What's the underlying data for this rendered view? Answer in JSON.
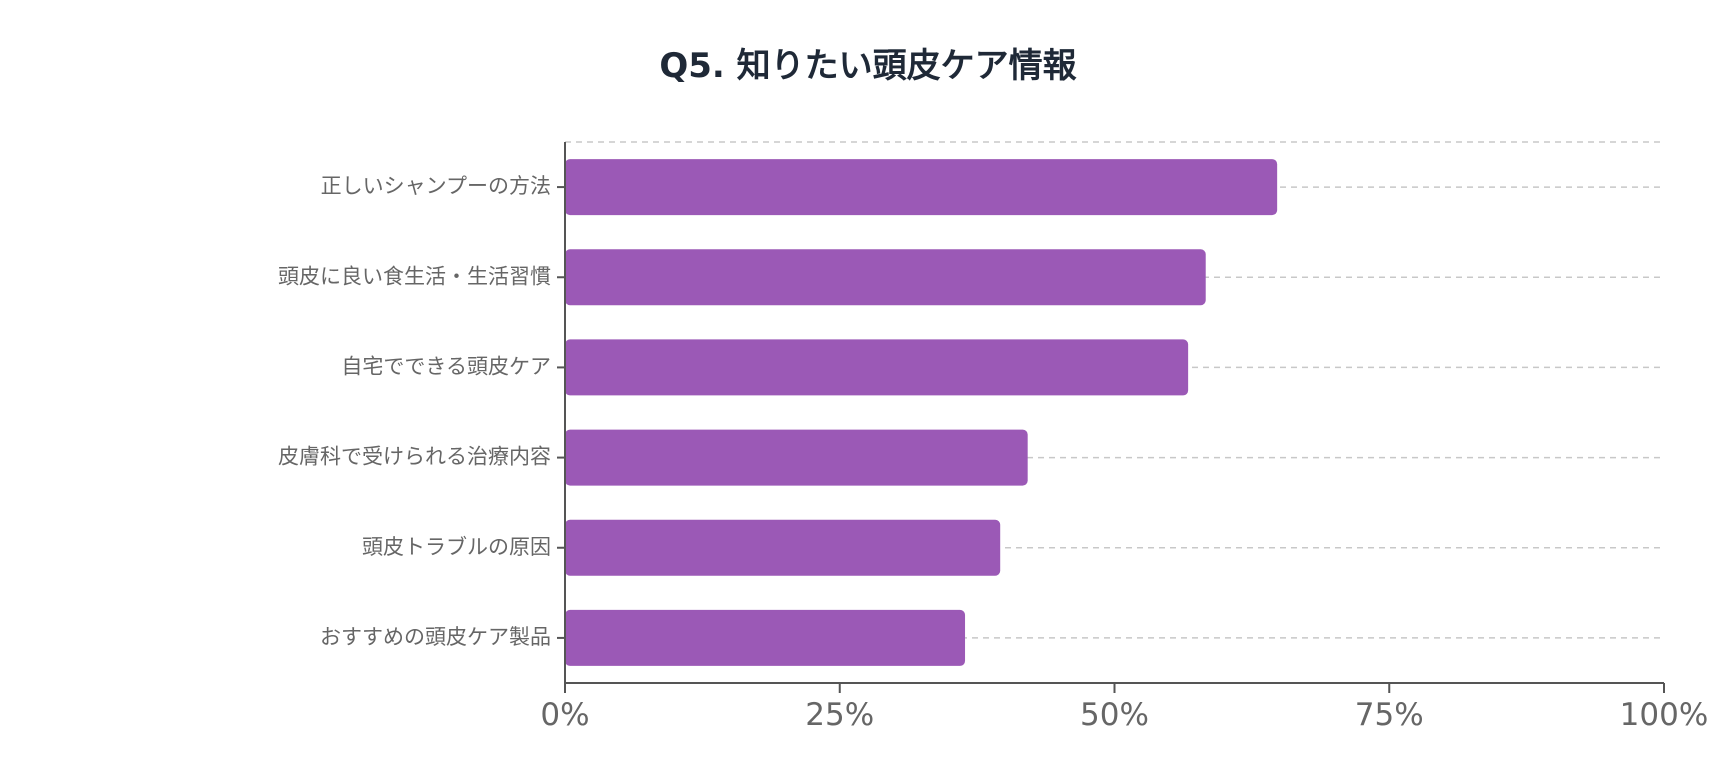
{
  "chart_data": {
    "type": "bar",
    "orientation": "horizontal",
    "title": "Q5. 知りたい頭皮ケア情報",
    "xlabel": "",
    "ylabel": "",
    "categories": [
      "正しいシャンプーの方法",
      "頭皮に良い食生活・生活習慣",
      "自宅でできる頭皮ケア",
      "皮膚科で受けられる治療内容",
      "頭皮トラブルの原因",
      "おすすめの頭皮ケア製品"
    ],
    "values": [
      64.8,
      58.3,
      56.7,
      42.1,
      39.6,
      36.4
    ],
    "xlim": [
      0,
      100
    ],
    "xticks": [
      0,
      25,
      50,
      75,
      100
    ],
    "xtick_labels": [
      "0%",
      "25%",
      "50%",
      "75%",
      "100%"
    ],
    "grid": "vertical-dashed",
    "colors": {
      "bar": "#9b59b6",
      "axis": "#555555",
      "grid": "#c8c8c8",
      "label": "#666666",
      "title": "#1f2937"
    }
  }
}
